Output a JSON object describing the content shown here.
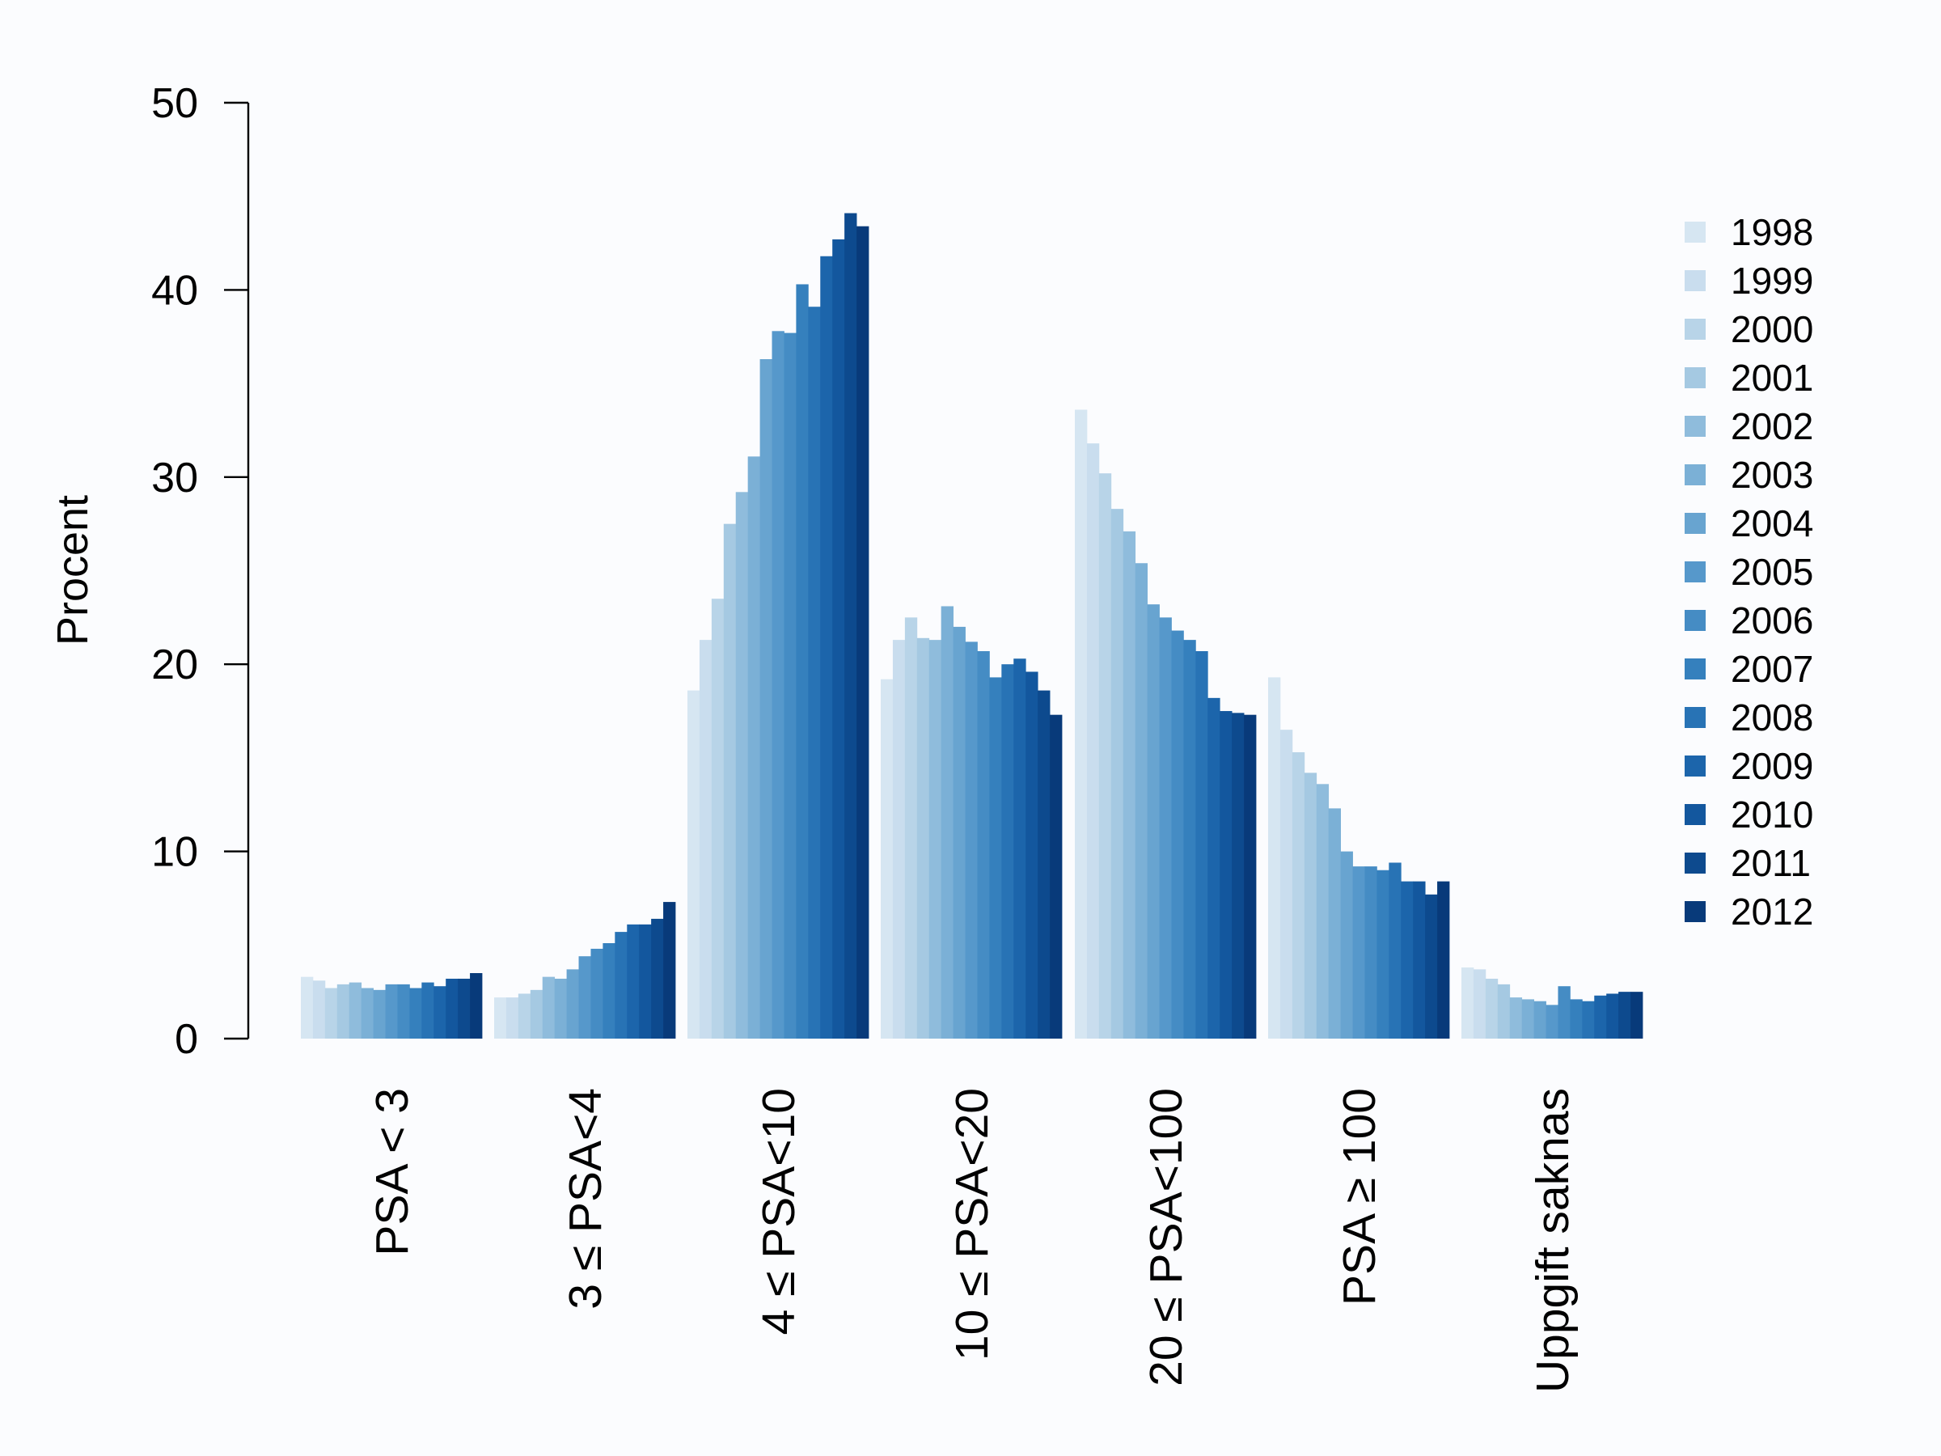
{
  "chart_data": {
    "type": "bar",
    "title": "",
    "xlabel": "",
    "ylabel": "Procent",
    "ylim": [
      0,
      50
    ],
    "yticks": [
      0,
      10,
      20,
      30,
      40,
      50
    ],
    "grid": false,
    "legend_position": "right",
    "categories": [
      "PSA < 3",
      "3 ≤ PSA<4",
      "4 ≤ PSA<10",
      "10 ≤ PSA<20",
      "20 ≤ PSA<100",
      "PSA ≥ 100",
      "Uppgift saknas"
    ],
    "series": [
      {
        "name": "1998",
        "color": "#d6e6f2",
        "values": [
          3.3,
          2.2,
          18.6,
          19.2,
          33.6,
          19.3,
          3.8
        ]
      },
      {
        "name": "1999",
        "color": "#c9ddee",
        "values": [
          3.1,
          2.2,
          21.3,
          21.3,
          31.8,
          16.5,
          3.7
        ]
      },
      {
        "name": "2000",
        "color": "#b8d4e8",
        "values": [
          2.7,
          2.4,
          23.5,
          22.5,
          30.2,
          15.3,
          3.2
        ]
      },
      {
        "name": "2001",
        "color": "#a5c9e2",
        "values": [
          2.9,
          2.6,
          27.5,
          21.4,
          28.3,
          14.2,
          2.9
        ]
      },
      {
        "name": "2002",
        "color": "#8fbcdc",
        "values": [
          3.0,
          3.3,
          29.2,
          21.3,
          27.1,
          13.6,
          2.2
        ]
      },
      {
        "name": "2003",
        "color": "#7bb0d6",
        "values": [
          2.7,
          3.2,
          31.1,
          23.1,
          25.4,
          12.3,
          2.1
        ]
      },
      {
        "name": "2004",
        "color": "#68a4d0",
        "values": [
          2.6,
          3.7,
          36.3,
          22.0,
          23.2,
          10.0,
          2.0
        ]
      },
      {
        "name": "2005",
        "color": "#5698cb",
        "values": [
          2.9,
          4.4,
          37.8,
          21.2,
          22.5,
          9.2,
          1.8
        ]
      },
      {
        "name": "2006",
        "color": "#458cc4",
        "values": [
          2.9,
          4.8,
          37.7,
          20.7,
          21.8,
          9.2,
          2.8
        ]
      },
      {
        "name": "2007",
        "color": "#3580bd",
        "values": [
          2.7,
          5.1,
          40.3,
          19.3,
          21.3,
          9.0,
          2.1
        ]
      },
      {
        "name": "2008",
        "color": "#2873b5",
        "values": [
          3.0,
          5.7,
          39.1,
          20.0,
          20.7,
          9.4,
          2.0
        ]
      },
      {
        "name": "2009",
        "color": "#1c65ab",
        "values": [
          2.8,
          6.1,
          41.8,
          20.3,
          18.2,
          8.4,
          2.3
        ]
      },
      {
        "name": "2010",
        "color": "#13579e",
        "values": [
          3.2,
          6.1,
          42.7,
          19.6,
          17.5,
          8.4,
          2.4
        ]
      },
      {
        "name": "2011",
        "color": "#0d4a8e",
        "values": [
          3.2,
          6.4,
          44.1,
          18.6,
          17.4,
          7.7,
          2.5
        ]
      },
      {
        "name": "2012",
        "color": "#083a7a",
        "values": [
          3.5,
          7.3,
          43.4,
          17.3,
          17.3,
          8.4,
          2.5
        ]
      }
    ]
  }
}
